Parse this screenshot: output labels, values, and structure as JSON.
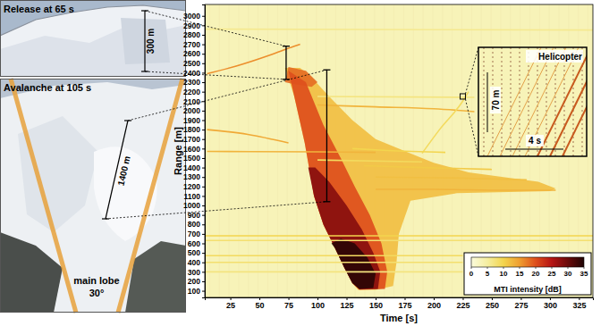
{
  "chart_data": {
    "type": "heatmap",
    "x_label": "Time [s]",
    "y_label": "Range [m]",
    "xlim": [
      3,
      337
    ],
    "ylim": [
      30,
      3120
    ],
    "xticks": [
      25,
      50,
      75,
      100,
      125,
      150,
      175,
      200,
      225,
      250,
      275,
      300,
      325
    ],
    "yticks": [
      100,
      200,
      300,
      400,
      500,
      600,
      700,
      800,
      900,
      1000,
      1100,
      1200,
      1300,
      1400,
      1500,
      1600,
      1700,
      1800,
      1900,
      2000,
      2100,
      2200,
      2300,
      2400,
      2500,
      2600,
      2700,
      2800,
      2900,
      3000
    ],
    "background_intensity": 3,
    "colorbar": {
      "label": "MTI intensity [dB]",
      "range": [
        0,
        35
      ],
      "ticks": [
        0,
        5,
        10,
        15,
        20,
        25,
        30,
        35
      ],
      "colors": [
        "#fbfbdc",
        "#f5eea0",
        "#f3d54e",
        "#ef9e30",
        "#de4f1c",
        "#b51414",
        "#6a0a0a",
        "#1e0404"
      ]
    },
    "regions": [
      {
        "intensity": 12,
        "t": [
          72,
          80,
          89,
          97,
          105,
          115,
          123,
          130,
          135,
          150,
          165,
          168,
          170,
          180,
          220,
          300,
          305,
          290,
          230,
          200,
          180,
          150,
          130,
          110,
          95,
          85
        ],
        "r": [
          2450,
          2150,
          1660,
          1100,
          800,
          550,
          345,
          180,
          110,
          110,
          150,
          400,
          700,
          1050,
          1130,
          1150,
          1180,
          1250,
          1350,
          1450,
          1550,
          1700,
          1900,
          2150,
          2350,
          2450
        ]
      },
      {
        "intensity": 18,
        "t": [
          72,
          75,
          90,
          100,
          95,
          80
        ],
        "r": [
          2300,
          2460,
          2420,
          2300,
          2250,
          2280
        ]
      },
      {
        "intensity": 20,
        "t": [
          75,
          80,
          89,
          97,
          105,
          115,
          123,
          130,
          136,
          158,
          160,
          155,
          145,
          132,
          120,
          105,
          90
        ],
        "r": [
          2420,
          2150,
          1660,
          1100,
          800,
          550,
          345,
          180,
          110,
          120,
          300,
          600,
          900,
          1200,
          1500,
          1850,
          2300
        ]
      },
      {
        "intensity": 28,
        "t": [
          92,
          97,
          105,
          115,
          123,
          130,
          136,
          152,
          154,
          148,
          138,
          125,
          110,
          98
        ],
        "r": [
          1400,
          1100,
          800,
          550,
          345,
          180,
          115,
          120,
          300,
          500,
          750,
          1000,
          1250,
          1400
        ]
      },
      {
        "intensity": 34,
        "t": [
          112,
          115,
          123,
          130,
          136,
          148,
          150,
          143,
          132,
          120
        ],
        "r": [
          600,
          550,
          345,
          180,
          120,
          130,
          280,
          450,
          600,
          650
        ]
      }
    ],
    "streaks": [
      {
        "intensity": 6,
        "t": [
          3,
          337
        ],
        "r": [
          2860,
          2850
        ]
      },
      {
        "intensity": 16,
        "t": [
          5,
          30,
          60,
          80,
          85
        ],
        "r": [
          2390,
          2470,
          2590,
          2680,
          2700
        ]
      },
      {
        "intensity": 7,
        "t": [
          100,
          235
        ],
        "r": [
          2150,
          2140
        ]
      },
      {
        "intensity": 13,
        "t": [
          100,
          150,
          200,
          235
        ],
        "r": [
          2060,
          2040,
          2020,
          1990
        ]
      },
      {
        "intensity": 14,
        "t": [
          5,
          40,
          75
        ],
        "r": [
          1800,
          1750,
          1660
        ]
      },
      {
        "intensity": 13,
        "t": [
          5,
          100,
          150
        ],
        "r": [
          1570,
          1565,
          1560
        ]
      },
      {
        "intensity": 9,
        "t": [
          100,
          190
        ],
        "r": [
          1480,
          1460
        ]
      },
      {
        "intensity": 9,
        "t": [
          190,
          205,
          225,
          230
        ],
        "r": [
          1550,
          1800,
          2100,
          2200
        ]
      },
      {
        "intensity": 10,
        "t": [
          3,
          337
        ],
        "r": [
          680,
          680
        ]
      },
      {
        "intensity": 8,
        "t": [
          3,
          337
        ],
        "r": [
          630,
          630
        ]
      },
      {
        "intensity": 9,
        "t": [
          3,
          225
        ],
        "r": [
          470,
          470
        ]
      },
      {
        "intensity": 8,
        "t": [
          3,
          225
        ],
        "r": [
          400,
          400
        ]
      },
      {
        "intensity": 7,
        "t": [
          3,
          225
        ],
        "r": [
          300,
          300
        ]
      },
      {
        "intensity": 13,
        "t": [
          150,
          200,
          260,
          305
        ],
        "r": [
          1170,
          1170,
          1160,
          1160
        ]
      },
      {
        "intensity": 12,
        "t": [
          150,
          220,
          280
        ],
        "r": [
          1300,
          1290,
          1270
        ]
      },
      {
        "intensity": 11,
        "t": [
          140,
          190,
          250
        ],
        "r": [
          1420,
          1400,
          1380
        ]
      },
      {
        "intensity": 10,
        "t": [
          130,
          160,
          210
        ],
        "r": [
          1600,
          1580,
          1560
        ]
      }
    ],
    "brackets": [
      {
        "t": 73,
        "r": [
          2330,
          2680
        ]
      },
      {
        "t": 108,
        "r": [
          1040,
          2430
        ]
      }
    ],
    "photos": [
      {
        "caption": "Release at 65 s",
        "scale_label": "300 m"
      },
      {
        "caption": "Avalanche at 105 s",
        "scale_label": "1400 m",
        "beam_label": "main lobe",
        "beam_angle_label": "30°"
      }
    ],
    "inset": {
      "title": "Helicopter",
      "t": 225,
      "r": 2150,
      "range_label": "70 m",
      "time_label": "4 s"
    }
  }
}
